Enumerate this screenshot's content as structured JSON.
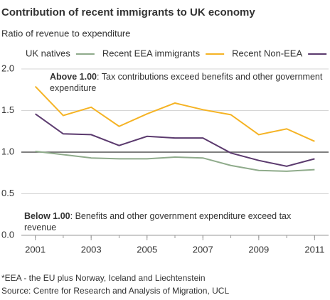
{
  "chart_data": {
    "type": "line",
    "title": "Contribution of recent immigrants to UK economy",
    "subtitle": "Ratio of revenue to expenditure",
    "x": [
      2001,
      2002,
      2003,
      2004,
      2005,
      2006,
      2007,
      2008,
      2009,
      2010,
      2011
    ],
    "xlim": [
      2000.5,
      2011.5
    ],
    "xticks": [
      2001,
      2003,
      2005,
      2007,
      2009,
      2011
    ],
    "ylim": [
      0,
      2
    ],
    "yticks": [
      {
        "value": 0,
        "label": "0.0"
      },
      {
        "value": 0.5,
        "label": "0.5"
      },
      {
        "value": 1,
        "label": "1.0"
      },
      {
        "value": 1.5,
        "label": "1.5"
      },
      {
        "value": 2,
        "label": "2.0"
      }
    ],
    "grid": true,
    "reference_line": 1,
    "reference_color": "#555555",
    "series": [
      {
        "name": "UK natives",
        "color": "#8fab8b",
        "values": [
          1.01,
          0.97,
          0.93,
          0.92,
          0.92,
          0.94,
          0.93,
          0.84,
          0.78,
          0.77,
          0.79
        ]
      },
      {
        "name": "Recent EEA immigrants",
        "color": "#f5b324",
        "values": [
          1.79,
          1.44,
          1.54,
          1.31,
          1.46,
          1.59,
          1.51,
          1.45,
          1.21,
          1.28,
          1.13
        ]
      },
      {
        "name": "Recent Non-EEA",
        "color": "#5b3a6e",
        "values": [
          1.46,
          1.22,
          1.21,
          1.08,
          1.19,
          1.17,
          1.17,
          0.99,
          0.9,
          0.83,
          0.92
        ]
      }
    ],
    "annotations": [
      {
        "bold": "Above 1.00",
        "text": ": Tax contributions exceed benefits and other government expenditure"
      },
      {
        "bold": "Below 1.00",
        "text": ": Benefits and other government expenditure exceed tax revenue"
      }
    ],
    "footnotes": [
      "*EEA - the EU plus Norway, Iceland and Liechtenstein",
      "Source: Centre for Research and Analysis of Migration, UCL"
    ]
  }
}
